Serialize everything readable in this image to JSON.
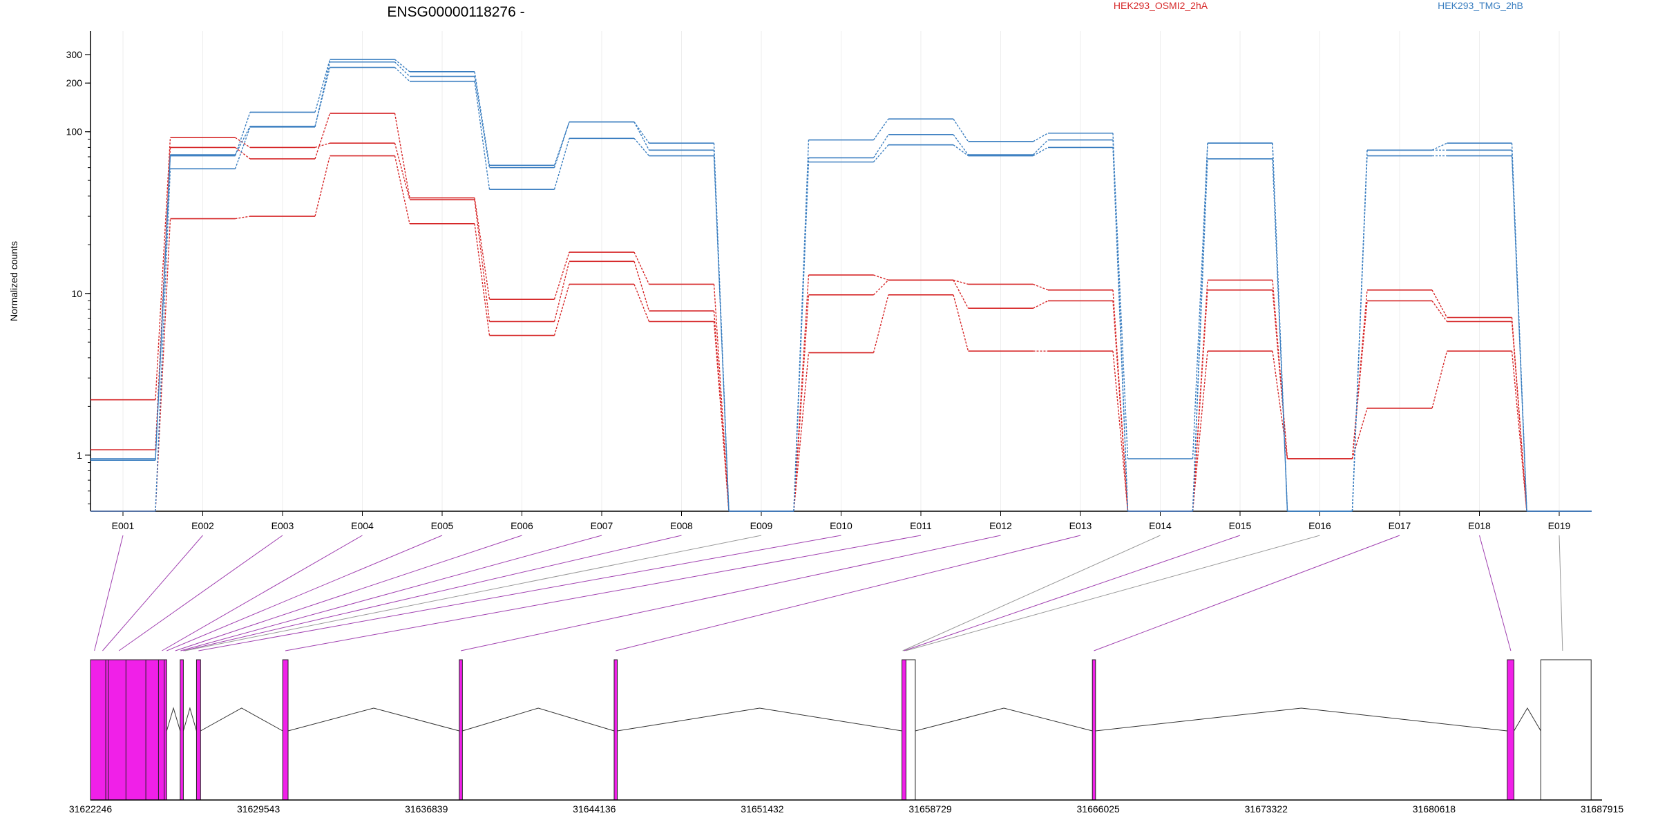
{
  "chart_data": {
    "type": "line",
    "title": "ENSG00000118276 -",
    "ylabel": "Normalized counts",
    "xlabel": "",
    "yscale": "log",
    "ylim": [
      0.45,
      380
    ],
    "y_ticks": [
      1,
      10,
      100,
      200,
      300
    ],
    "categories": [
      "E001",
      "E002",
      "E003",
      "E004",
      "E005",
      "E006",
      "E007",
      "E008",
      "E009",
      "E010",
      "E011",
      "E012",
      "E013",
      "E014",
      "E015",
      "E016",
      "E017",
      "E018",
      "E019"
    ],
    "legend": {
      "placement": "top",
      "entries": [
        {
          "label": "HEK293_OSMI2_2hA",
          "color": "#d62728"
        },
        {
          "label": "HEK293_TMG_2hB",
          "color": "#3a7ec0"
        }
      ]
    },
    "series": [
      {
        "name": "",
        "group": "HEK293_OSMI2_2hA",
        "color": "#d62728",
        "values": [
          1.08,
          80,
          68,
          130,
          39,
          9.2,
          18,
          11.4,
          0.45,
          13,
          12.1,
          11.4,
          10.5,
          0.45,
          12.1,
          0.95,
          10.5,
          7.1,
          0.45
        ]
      },
      {
        "name": "",
        "group": "HEK293_OSMI2_2hA",
        "color": "#d62728",
        "values": [
          2.2,
          92,
          80,
          85,
          38,
          6.7,
          15.8,
          7.8,
          0.45,
          9.8,
          12.1,
          8.1,
          9,
          0.45,
          10.5,
          0.95,
          9,
          6.7,
          0.45
        ]
      },
      {
        "name": "",
        "group": "HEK293_OSMI2_2hA",
        "color": "#d62728",
        "values": [
          0.45,
          29,
          30,
          71,
          27,
          5.5,
          11.4,
          6.7,
          0.45,
          4.3,
          9.8,
          4.4,
          4.4,
          0.45,
          4.4,
          0.95,
          1.95,
          4.4,
          0.45
        ]
      },
      {
        "name": "",
        "group": "HEK293_TMG_2hB",
        "color": "#3a7ec0",
        "values": [
          0.95,
          71,
          132,
          280,
          235,
          62,
          115,
          85,
          0.45,
          89,
          120,
          87,
          98,
          0.45,
          85,
          0.45,
          77,
          85,
          0.45
        ]
      },
      {
        "name": "",
        "group": "HEK293_TMG_2hB",
        "color": "#3a7ec0",
        "values": [
          0.45,
          59,
          107,
          270,
          220,
          60,
          115,
          77,
          0.45,
          69,
          96,
          72,
          89,
          0.95,
          85,
          0.45,
          77,
          77,
          0.45
        ]
      },
      {
        "name": "",
        "group": "HEK293_TMG_2hB",
        "color": "#3a7ec0",
        "values": [
          0.93,
          72,
          108,
          250,
          205,
          44,
          91,
          71,
          0.45,
          65,
          83,
          71,
          80,
          0.45,
          68,
          0.45,
          71,
          71,
          0.45
        ]
      }
    ],
    "genomic_axis": {
      "ticks": [
        "31622246",
        "31629543",
        "31636839",
        "31644136",
        "31651432",
        "31658729",
        "31666025",
        "31673322",
        "31680618",
        "31687915"
      ],
      "range": [
        31622246,
        31687915
      ]
    },
    "gene_model": {
      "highlight_color": "#f020e8",
      "blocks": [
        {
          "start": 31622246,
          "end": 31625556,
          "highlighted": true
        },
        {
          "start": 31626143,
          "end": 31626280,
          "highlighted": true
        },
        {
          "start": 31626851,
          "end": 31627027,
          "highlighted": true
        },
        {
          "start": 31630596,
          "end": 31630830,
          "highlighted": true
        },
        {
          "start": 31638267,
          "end": 31638403,
          "highlighted": true
        },
        {
          "start": 31644995,
          "end": 31645132,
          "highlighted": true
        },
        {
          "start": 31657500,
          "end": 31657676,
          "highlighted": true
        },
        {
          "start": 31657676,
          "end": 31658080,
          "highlighted": false
        },
        {
          "start": 31665772,
          "end": 31665909,
          "highlighted": true
        },
        {
          "start": 31683795,
          "end": 31684089,
          "highlighted": true
        },
        {
          "start": 31685254,
          "end": 31687441,
          "highlighted": false
        }
      ],
      "exon_dividers": [
        31622908,
        31623022,
        31623786,
        31624650,
        31625200,
        31625450
      ],
      "introns": [
        [
          31625556,
          31626143
        ],
        [
          31626280,
          31626851
        ],
        [
          31627027,
          31630596
        ],
        [
          31630830,
          31638267
        ],
        [
          31638403,
          31644995
        ],
        [
          31645132,
          31657500
        ],
        [
          31658080,
          31665772
        ],
        [
          31665909,
          31683795
        ],
        [
          31684089,
          31685254
        ]
      ],
      "bin_positions": [
        {
          "bin": "E001",
          "pos": 31622415,
          "highlighted": true
        },
        {
          "bin": "E002",
          "pos": 31622770,
          "highlighted": true
        },
        {
          "bin": "E003",
          "pos": 31623480,
          "highlighted": true
        },
        {
          "bin": "E004",
          "pos": 31625350,
          "highlighted": true
        },
        {
          "bin": "E005",
          "pos": 31625556,
          "highlighted": true
        },
        {
          "bin": "E006",
          "pos": 31625930,
          "highlighted": true
        },
        {
          "bin": "E007",
          "pos": 31626160,
          "highlighted": true
        },
        {
          "bin": "E008",
          "pos": 31626280,
          "highlighted": true
        },
        {
          "bin": "E009",
          "pos": 31626350,
          "highlighted": false
        },
        {
          "bin": "E010",
          "pos": 31626940,
          "highlighted": true
        },
        {
          "bin": "E011",
          "pos": 31630710,
          "highlighted": true
        },
        {
          "bin": "E012",
          "pos": 31638335,
          "highlighted": true
        },
        {
          "bin": "E013",
          "pos": 31645065,
          "highlighted": true
        },
        {
          "bin": "E014",
          "pos": 31657530,
          "highlighted": false
        },
        {
          "bin": "E015",
          "pos": 31657590,
          "highlighted": true
        },
        {
          "bin": "E016",
          "pos": 31657660,
          "highlighted": false
        },
        {
          "bin": "E017",
          "pos": 31665840,
          "highlighted": true
        },
        {
          "bin": "E018",
          "pos": 31683950,
          "highlighted": true
        },
        {
          "bin": "E019",
          "pos": 31686200,
          "highlighted": false
        }
      ]
    }
  }
}
